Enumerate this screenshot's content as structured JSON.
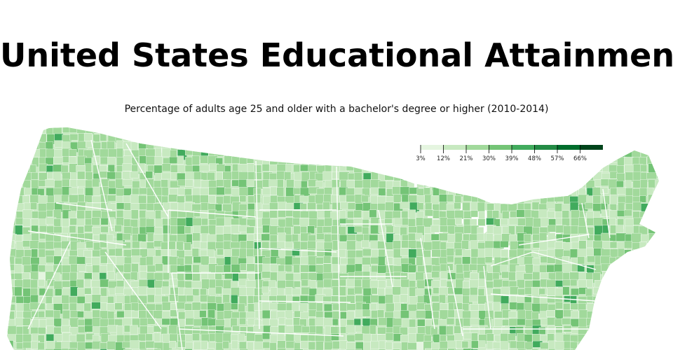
{
  "title": "United States Educational Attainment",
  "subtitle": "Percentage of adults age 25 and older with a bachelor's degree or higher (2010-2014)",
  "legend": {
    "ticks": [
      "3%",
      "12%",
      "21%",
      "30%",
      "39%",
      "48%",
      "57%",
      "66%"
    ],
    "colors": [
      "#e5f5e0",
      "#c7e9c0",
      "#a1d99b",
      "#74c476",
      "#41ab5d",
      "#238b45",
      "#006d2c",
      "#00441b"
    ]
  },
  "map_style": {
    "land_base": "#c7e9c0",
    "state_border": "#ffffff",
    "county_border": "#ffffff"
  }
}
